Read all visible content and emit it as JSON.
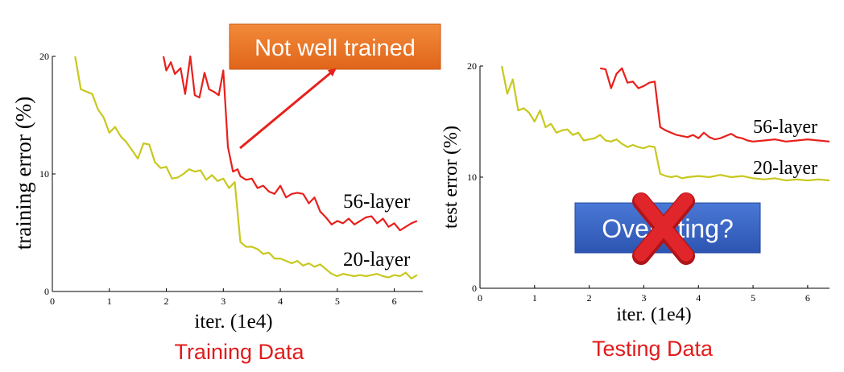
{
  "captions": {
    "training": "Training Data",
    "testing": "Testing Data"
  },
  "callouts": {
    "not_well_trained": "Not well trained",
    "overfitting": "Overfitting?"
  },
  "colors": {
    "line_56": "#e8201c",
    "line_20": "#c8c81e",
    "caption": "#e21b1b",
    "orange_box": "#e8731f",
    "blue_box": "#3561c0",
    "cross": "#e0262a"
  },
  "icons": {
    "cross": "red-x-icon"
  },
  "chart_data": [
    {
      "type": "line",
      "xlabel": "iter. (1e4)",
      "ylabel": "training error (%)",
      "xlim": [
        0,
        6.5
      ],
      "ylim": [
        0,
        20
      ],
      "xticks": [
        "0",
        "1",
        "2",
        "3",
        "4",
        "5",
        "6"
      ],
      "yticks": [
        "0",
        "10",
        "20"
      ],
      "series": [
        {
          "name": "56-layer",
          "x": [
            1.95,
            2.0,
            2.08,
            2.15,
            2.25,
            2.33,
            2.42,
            2.5,
            2.58,
            2.67,
            2.75,
            2.83,
            2.92,
            3.0,
            3.08,
            3.17,
            3.25,
            3.3,
            3.4,
            3.5,
            3.6,
            3.7,
            3.8,
            3.9,
            4.0,
            4.1,
            4.2,
            4.3,
            4.4,
            4.5,
            4.6,
            4.7,
            4.8,
            4.9,
            5.0,
            5.1,
            5.2,
            5.3,
            5.4,
            5.5,
            5.6,
            5.7,
            5.8,
            5.9,
            6.0,
            6.1,
            6.2,
            6.3,
            6.4
          ],
          "values": [
            20.0,
            18.8,
            19.5,
            18.5,
            19.0,
            16.8,
            20.0,
            16.7,
            16.5,
            18.6,
            17.2,
            17.0,
            16.7,
            18.8,
            12.3,
            10.2,
            10.4,
            9.8,
            9.5,
            9.6,
            8.8,
            9.0,
            8.5,
            8.3,
            9.0,
            8.0,
            8.3,
            8.4,
            8.3,
            7.5,
            8.0,
            6.8,
            6.3,
            5.7,
            6.0,
            5.8,
            6.2,
            5.7,
            6.0,
            6.3,
            6.4,
            5.8,
            6.2,
            5.5,
            5.8,
            5.2,
            5.5,
            5.8,
            6.0
          ]
        },
        {
          "name": "20-layer",
          "x": [
            0.4,
            0.5,
            0.6,
            0.7,
            0.8,
            0.9,
            1.0,
            1.1,
            1.2,
            1.3,
            1.4,
            1.5,
            1.6,
            1.7,
            1.8,
            1.9,
            2.0,
            2.1,
            2.2,
            2.3,
            2.4,
            2.5,
            2.6,
            2.7,
            2.8,
            2.9,
            3.0,
            3.1,
            3.2,
            3.3,
            3.4,
            3.5,
            3.6,
            3.7,
            3.8,
            3.9,
            4.0,
            4.1,
            4.2,
            4.3,
            4.4,
            4.5,
            4.6,
            4.7,
            4.8,
            4.9,
            5.0,
            5.1,
            5.2,
            5.3,
            5.4,
            5.5,
            5.6,
            5.7,
            5.8,
            5.9,
            6.0,
            6.1,
            6.2,
            6.3,
            6.4
          ],
          "values": [
            20.0,
            17.2,
            17.0,
            16.8,
            15.5,
            14.8,
            13.5,
            14.0,
            13.2,
            12.7,
            12.0,
            11.3,
            12.6,
            12.5,
            11.0,
            10.5,
            10.6,
            9.6,
            9.7,
            10.0,
            10.4,
            10.2,
            10.3,
            9.5,
            9.9,
            9.4,
            9.6,
            8.8,
            9.3,
            4.2,
            3.8,
            3.8,
            3.6,
            3.2,
            3.3,
            2.8,
            2.8,
            2.6,
            2.4,
            2.6,
            2.2,
            2.4,
            2.1,
            2.3,
            1.9,
            1.5,
            1.3,
            1.5,
            1.4,
            1.3,
            1.4,
            1.3,
            1.4,
            1.5,
            1.3,
            1.2,
            1.4,
            1.3,
            1.6,
            1.1,
            1.4
          ]
        }
      ]
    },
    {
      "type": "line",
      "xlabel": "iter. (1e4)",
      "ylabel": "test error (%)",
      "xlim": [
        0,
        6.4
      ],
      "ylim": [
        0,
        20
      ],
      "xticks": [
        "0",
        "1",
        "2",
        "3",
        "4",
        "5",
        "6"
      ],
      "yticks": [
        "0",
        "10",
        "20"
      ],
      "series": [
        {
          "name": "56-layer",
          "x": [
            2.2,
            2.3,
            2.4,
            2.5,
            2.6,
            2.7,
            2.8,
            2.9,
            3.0,
            3.1,
            3.2,
            3.3,
            3.4,
            3.5,
            3.6,
            3.7,
            3.8,
            3.9,
            4.0,
            4.1,
            4.2,
            4.3,
            4.4,
            4.5,
            4.6,
            4.7,
            4.8,
            4.9,
            5.0,
            5.2,
            5.4,
            5.6,
            5.8,
            6.0,
            6.2,
            6.4
          ],
          "values": [
            19.8,
            19.7,
            18.0,
            19.3,
            19.8,
            18.5,
            18.6,
            18.0,
            18.2,
            18.5,
            18.6,
            14.5,
            14.2,
            14.0,
            13.8,
            13.7,
            13.6,
            13.8,
            13.5,
            14.0,
            13.6,
            13.4,
            13.5,
            13.7,
            13.9,
            13.6,
            13.5,
            13.3,
            13.2,
            13.3,
            13.4,
            13.2,
            13.3,
            13.4,
            13.3,
            13.2
          ]
        },
        {
          "name": "20-layer",
          "x": [
            0.4,
            0.5,
            0.6,
            0.7,
            0.8,
            0.9,
            1.0,
            1.1,
            1.2,
            1.3,
            1.4,
            1.5,
            1.6,
            1.7,
            1.8,
            1.9,
            2.0,
            2.1,
            2.2,
            2.3,
            2.4,
            2.5,
            2.6,
            2.7,
            2.8,
            2.9,
            3.0,
            3.1,
            3.2,
            3.3,
            3.4,
            3.5,
            3.6,
            3.7,
            3.8,
            4.0,
            4.2,
            4.4,
            4.6,
            4.8,
            5.0,
            5.2,
            5.4,
            5.6,
            5.8,
            6.0,
            6.2,
            6.4
          ],
          "values": [
            20.0,
            17.5,
            18.8,
            16.0,
            16.2,
            15.8,
            15.0,
            16.0,
            14.5,
            14.8,
            14.0,
            14.2,
            14.3,
            13.8,
            14.0,
            13.3,
            13.4,
            13.5,
            13.8,
            13.3,
            13.2,
            13.4,
            13.0,
            12.7,
            12.9,
            12.7,
            12.6,
            12.8,
            12.7,
            10.3,
            10.1,
            10.0,
            10.1,
            9.9,
            10.0,
            10.1,
            10.0,
            10.2,
            10.0,
            10.1,
            9.9,
            9.8,
            9.9,
            9.7,
            9.8,
            9.7,
            9.8,
            9.7
          ]
        }
      ]
    }
  ]
}
